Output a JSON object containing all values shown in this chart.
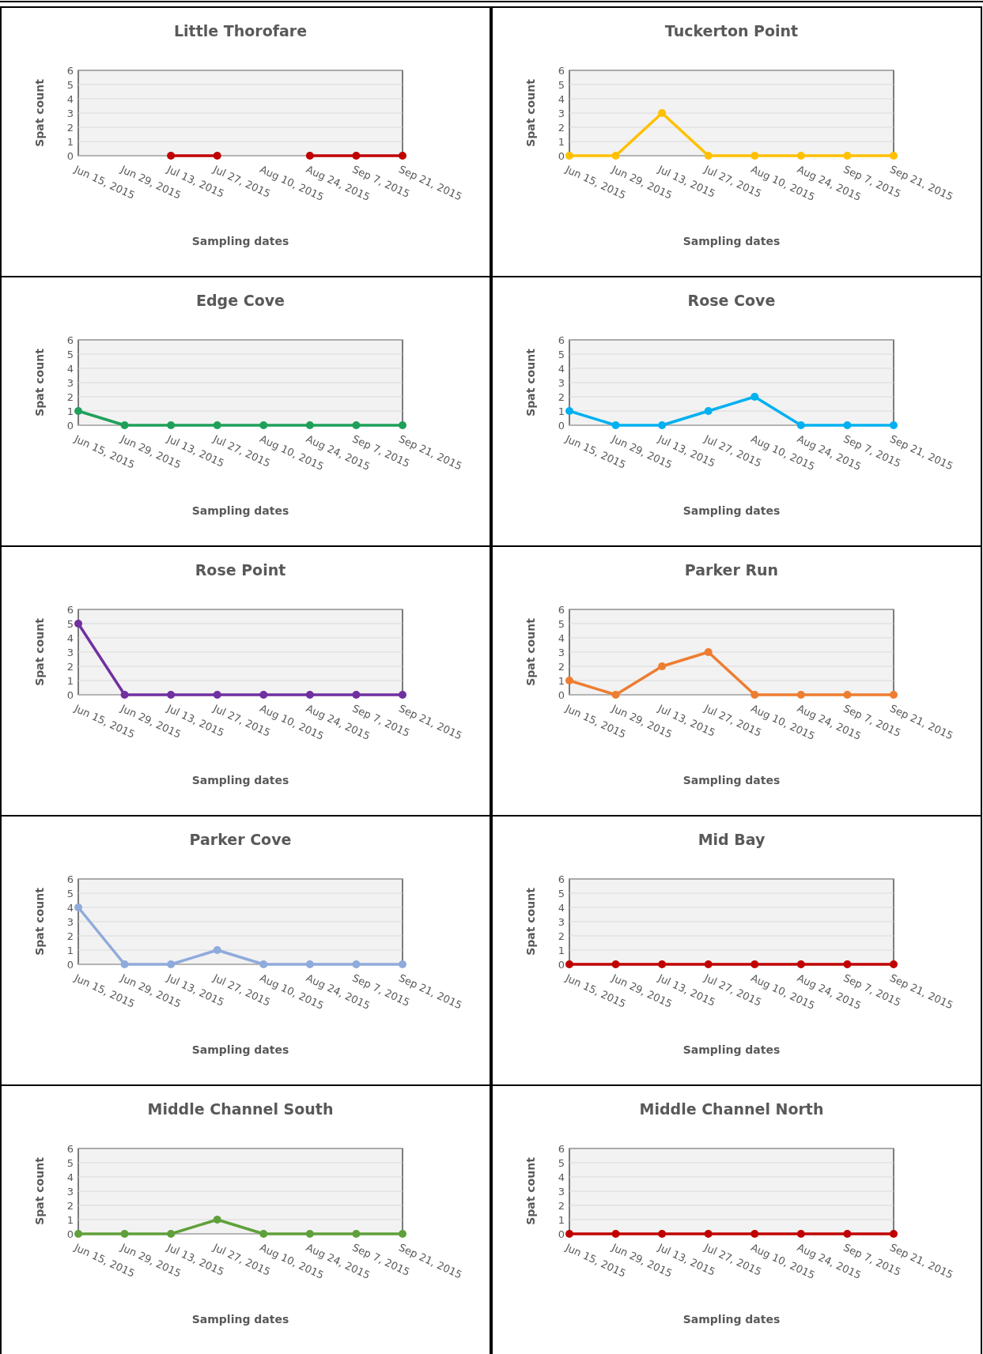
{
  "chart_data": [
    {
      "type": "line",
      "title": "Little Thorofare",
      "xlabel": "Sampling dates",
      "ylabel": "Spat count",
      "categories": [
        "Jun 15, 2015",
        "Jun 29, 2015",
        "Jul 13, 2015",
        "Jul 27, 2015",
        "Aug 10, 2015",
        "Aug 24, 2015",
        "Sep 7, 2015",
        "Sep 21, 2015"
      ],
      "series": [
        {
          "color": "#c00000",
          "values": [
            null,
            null,
            0,
            0,
            null,
            0,
            0,
            0
          ]
        }
      ],
      "ylim": [
        0,
        6
      ],
      "yticks": [
        0,
        1,
        2,
        3,
        4,
        5,
        6
      ],
      "grid": "y",
      "marker": "circle"
    },
    {
      "type": "line",
      "title": "Tuckerton Point",
      "xlabel": "Sampling dates",
      "ylabel": "Spat count",
      "categories": [
        "Jun 15, 2015",
        "Jun 29, 2015",
        "Jul 13, 2015",
        "Jul 27, 2015",
        "Aug 10, 2015",
        "Aug 24, 2015",
        "Sep 7, 2015",
        "Sep 21, 2015"
      ],
      "series": [
        {
          "color": "#ffc000",
          "values": [
            0,
            0,
            3,
            0,
            0,
            0,
            0,
            0
          ]
        }
      ],
      "ylim": [
        0,
        6
      ],
      "yticks": [
        0,
        1,
        2,
        3,
        4,
        5,
        6
      ],
      "grid": "y",
      "marker": "circle"
    },
    {
      "type": "line",
      "title": "Edge Cove",
      "xlabel": "Sampling dates",
      "ylabel": "Spat count",
      "categories": [
        "Jun 15, 2015",
        "Jun 29, 2015",
        "Jul 13, 2015",
        "Jul 27, 2015",
        "Aug 10, 2015",
        "Aug 24, 2015",
        "Sep 7, 2015",
        "Sep 21, 2015"
      ],
      "series": [
        {
          "color": "#1fa05a",
          "values": [
            1,
            0,
            0,
            0,
            0,
            0,
            0,
            0
          ]
        }
      ],
      "ylim": [
        0,
        6
      ],
      "yticks": [
        0,
        1,
        2,
        3,
        4,
        5,
        6
      ],
      "grid": "y",
      "marker": "circle"
    },
    {
      "type": "line",
      "title": "Rose Cove",
      "xlabel": "Sampling dates",
      "ylabel": "Spat count",
      "categories": [
        "Jun 15, 2015",
        "Jun 29, 2015",
        "Jul 13, 2015",
        "Jul 27, 2015",
        "Aug 10, 2015",
        "Aug 24, 2015",
        "Sep 7, 2015",
        "Sep 21, 2015"
      ],
      "series": [
        {
          "color": "#00b0f0",
          "values": [
            1,
            0,
            0,
            1,
            2,
            0,
            0,
            0
          ]
        }
      ],
      "ylim": [
        0,
        6
      ],
      "yticks": [
        0,
        1,
        2,
        3,
        4,
        5,
        6
      ],
      "grid": "y",
      "marker": "circle"
    },
    {
      "type": "line",
      "title": "Rose Point",
      "xlabel": "Sampling dates",
      "ylabel": "Spat count",
      "categories": [
        "Jun 15, 2015",
        "Jun 29, 2015",
        "Jul 13, 2015",
        "Jul 27, 2015",
        "Aug 10, 2015",
        "Aug 24, 2015",
        "Sep 7, 2015",
        "Sep 21, 2015"
      ],
      "series": [
        {
          "color": "#7030a0",
          "values": [
            5,
            0,
            0,
            0,
            0,
            0,
            0,
            0
          ]
        }
      ],
      "ylim": [
        0,
        6
      ],
      "yticks": [
        0,
        1,
        2,
        3,
        4,
        5,
        6
      ],
      "grid": "y",
      "marker": "circle"
    },
    {
      "type": "line",
      "title": "Parker Run",
      "xlabel": "Sampling dates",
      "ylabel": "Spat count",
      "categories": [
        "Jun 15, 2015",
        "Jun 29, 2015",
        "Jul 13, 2015",
        "Jul 27, 2015",
        "Aug 10, 2015",
        "Aug 24, 2015",
        "Sep 7, 2015",
        "Sep 21, 2015"
      ],
      "series": [
        {
          "color": "#ed7d31",
          "values": [
            1,
            0,
            2,
            3,
            0,
            0,
            0,
            0
          ]
        }
      ],
      "ylim": [
        0,
        6
      ],
      "yticks": [
        0,
        1,
        2,
        3,
        4,
        5,
        6
      ],
      "grid": "y",
      "marker": "circle"
    },
    {
      "type": "line",
      "title": "Parker Cove",
      "xlabel": "Sampling dates",
      "ylabel": "Spat count",
      "categories": [
        "Jun 15, 2015",
        "Jun 29, 2015",
        "Jul 13, 2015",
        "Jul 27, 2015",
        "Aug 10, 2015",
        "Aug 24, 2015",
        "Sep 7, 2015",
        "Sep 21, 2015"
      ],
      "series": [
        {
          "color": "#8faadc",
          "values": [
            4,
            0,
            0,
            1,
            0,
            0,
            0,
            0
          ]
        }
      ],
      "ylim": [
        0,
        6
      ],
      "yticks": [
        0,
        1,
        2,
        3,
        4,
        5,
        6
      ],
      "grid": "y",
      "marker": "circle"
    },
    {
      "type": "line",
      "title": "Mid Bay",
      "xlabel": "Sampling dates",
      "ylabel": "Spat count",
      "categories": [
        "Jun 15, 2015",
        "Jun 29, 2015",
        "Jul 13, 2015",
        "Jul 27, 2015",
        "Aug 10, 2015",
        "Aug 24, 2015",
        "Sep 7, 2015",
        "Sep 21, 2015"
      ],
      "series": [
        {
          "color": "#c00000",
          "values": [
            0,
            0,
            0,
            0,
            0,
            0,
            0,
            0
          ]
        }
      ],
      "ylim": [
        0,
        6
      ],
      "yticks": [
        0,
        1,
        2,
        3,
        4,
        5,
        6
      ],
      "grid": "y",
      "marker": "circle"
    },
    {
      "type": "line",
      "title": "Middle Channel South",
      "xlabel": "Sampling dates",
      "ylabel": "Spat count",
      "categories": [
        "Jun 15, 2015",
        "Jun 29, 2015",
        "Jul 13, 2015",
        "Jul 27, 2015",
        "Aug 10, 2015",
        "Aug 24, 2015",
        "Sep 7, 2015",
        "Sep 21, 2015"
      ],
      "series": [
        {
          "color": "#5fa03a",
          "values": [
            0,
            0,
            0,
            1,
            0,
            0,
            0,
            0
          ]
        }
      ],
      "ylim": [
        0,
        6
      ],
      "yticks": [
        0,
        1,
        2,
        3,
        4,
        5,
        6
      ],
      "grid": "y",
      "marker": "circle"
    },
    {
      "type": "line",
      "title": "Middle Channel North",
      "xlabel": "Sampling dates",
      "ylabel": "Spat count",
      "categories": [
        "Jun 15, 2015",
        "Jun 29, 2015",
        "Jul 13, 2015",
        "Jul 27, 2015",
        "Aug 10, 2015",
        "Aug 24, 2015",
        "Sep 7, 2015",
        "Sep 21, 2015"
      ],
      "series": [
        {
          "color": "#c00000",
          "values": [
            0,
            0,
            0,
            0,
            0,
            0,
            0,
            0
          ]
        }
      ],
      "ylim": [
        0,
        6
      ],
      "yticks": [
        0,
        1,
        2,
        3,
        4,
        5,
        6
      ],
      "grid": "y",
      "marker": "circle"
    }
  ]
}
